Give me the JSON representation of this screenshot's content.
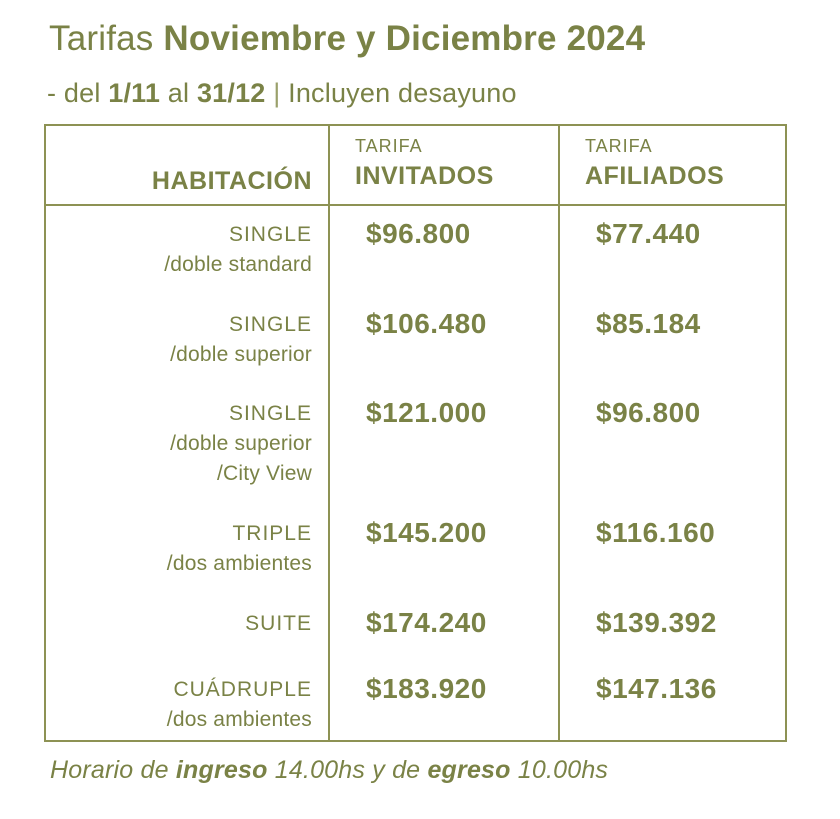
{
  "colors": {
    "accent_text": "#7a8246",
    "table_border": "#8d9254",
    "background": "#ffffff"
  },
  "title": {
    "prefix": "Tarifas ",
    "bold": "Noviembre y Diciembre 2024"
  },
  "subtitle": {
    "lead": "- del ",
    "date_from": "1/11",
    "mid": " al ",
    "date_to": "31/12",
    "separator": " | ",
    "note": "Incluyen desayuno"
  },
  "table": {
    "header": {
      "room": "HABITACIÓN",
      "guests_top": "TARIFA",
      "guests_bottom": "INVITADOS",
      "members_top": "TARIFA",
      "members_bottom": "AFILIADOS"
    },
    "rows": [
      {
        "name": "SINGLE",
        "details": [
          "/doble standard"
        ],
        "invitados": "$96.800",
        "afiliados": "$77.440"
      },
      {
        "name": "SINGLE",
        "details": [
          "/doble superior"
        ],
        "invitados": "$106.480",
        "afiliados": "$85.184"
      },
      {
        "name": "SINGLE",
        "details": [
          "/doble superior",
          "/City View"
        ],
        "invitados": "$121.000",
        "afiliados": "$96.800"
      },
      {
        "name": "TRIPLE",
        "details": [
          "/dos ambientes"
        ],
        "invitados": "$145.200",
        "afiliados": "$116.160"
      },
      {
        "name": "SUITE",
        "details": [],
        "invitados": "$174.240",
        "afiliados": "$139.392"
      },
      {
        "name": "CUÁDRUPLE",
        "details": [
          "/dos ambientes"
        ],
        "invitados": "$183.920",
        "afiliados": "$147.136"
      }
    ]
  },
  "footer": {
    "part1": "Horario de ",
    "bold1": "ingreso",
    "part2": " 14.00hs y de ",
    "bold2": "egreso",
    "part3": " 10.00hs"
  }
}
